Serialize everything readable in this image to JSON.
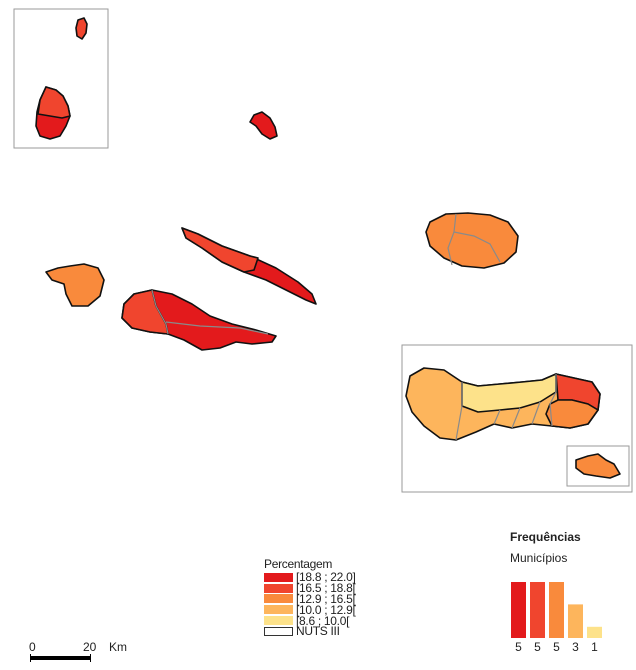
{
  "legend": {
    "title": "Percentagem",
    "classes": [
      {
        "label": "[18.8 ; 22.0]",
        "color": "#e31a1c"
      },
      {
        "label": "[16.5 ; 18.8[",
        "color": "#f0452e"
      },
      {
        "label": "[12.9 ; 16.5[",
        "color": "#f98a3c"
      },
      {
        "label": "[10.0 ; 12.9[",
        "color": "#fdb55c"
      },
      {
        "label": "[8.6 ; 10.0[",
        "color": "#fde28a"
      }
    ],
    "boundary_label": "NUTS III"
  },
  "frequencies": {
    "title": "Frequências",
    "subtitle": "Municípios",
    "chart_data": {
      "type": "bar",
      "categories": [
        "[18.8 ; 22.0]",
        "[16.5 ; 18.8[",
        "[12.9 ; 16.5[",
        "[10.0 ; 12.9[",
        "[8.6 ; 10.0["
      ],
      "values": [
        5,
        5,
        5,
        3,
        1
      ],
      "colors": [
        "#e31a1c",
        "#f0452e",
        "#f98a3c",
        "#fdb55c",
        "#fde28a"
      ],
      "ylim": [
        0,
        5
      ]
    }
  },
  "scale_bar": {
    "start_label": "0",
    "end_label": "20",
    "unit": "Km"
  }
}
